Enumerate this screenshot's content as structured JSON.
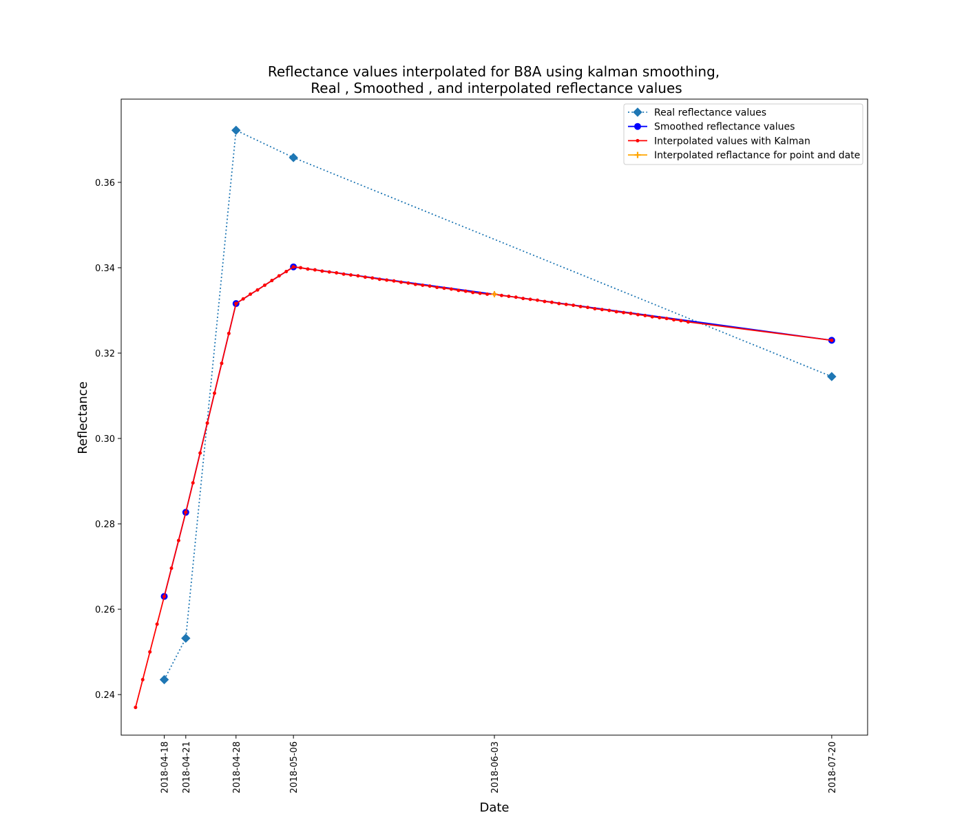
{
  "chart_data": {
    "type": "line",
    "title_lines": [
      "Reflectance values interpolated for B8A using kalman smoothing,",
      "Real  , Smoothed , and interpolated  reflectance values"
    ],
    "xlabel": "Date",
    "ylabel": "Reflectance",
    "x_type": "date",
    "xlim": [
      "2018-04-12",
      "2018-07-25"
    ],
    "ylim": [
      0.2305,
      0.3795
    ],
    "x_ticks": [
      "2018-04-18",
      "2018-04-21",
      "2018-04-28",
      "2018-05-06",
      "2018-06-03",
      "2018-07-20"
    ],
    "y_ticks": [
      0.24,
      0.26,
      0.28,
      0.3,
      0.32,
      0.34,
      0.36
    ],
    "y_tick_labels": [
      "0.24",
      "0.26",
      "0.28",
      "0.30",
      "0.32",
      "0.34",
      "0.36"
    ],
    "grid": false,
    "legend_position": "top-right",
    "series": [
      {
        "name": "Real reflectance values",
        "color": "#1f77b4",
        "line_style": "dotted",
        "marker": "diamond",
        "x": [
          "2018-04-18",
          "2018-04-21",
          "2018-04-28",
          "2018-05-06",
          "2018-07-20"
        ],
        "y": [
          0.2435,
          0.2532,
          0.3722,
          0.3658,
          0.3145
        ]
      },
      {
        "name": "Smoothed reflectance values",
        "color": "#0000ff",
        "line_style": "solid",
        "marker": "circle",
        "x": [
          "2018-04-18",
          "2018-04-21",
          "2018-04-28",
          "2018-05-06",
          "2018-07-20"
        ],
        "y": [
          0.263,
          0.2827,
          0.3316,
          0.3402,
          0.323
        ]
      },
      {
        "name": "Interpolated values with Kalman",
        "color": "#ff0000",
        "line_style": "solid",
        "marker": "dot",
        "x": [
          "2018-04-14",
          "2018-04-15",
          "2018-04-16",
          "2018-04-17",
          "2018-04-18",
          "2018-04-19",
          "2018-04-20",
          "2018-04-21",
          "2018-04-22",
          "2018-04-23",
          "2018-04-24",
          "2018-04-25",
          "2018-04-26",
          "2018-04-27",
          "2018-04-28",
          "2018-04-29",
          "2018-04-30",
          "2018-05-01",
          "2018-05-02",
          "2018-05-03",
          "2018-05-04",
          "2018-05-05",
          "2018-05-06",
          "2018-05-07",
          "2018-05-08",
          "2018-05-09",
          "2018-05-10",
          "2018-05-11",
          "2018-05-12",
          "2018-05-13",
          "2018-05-14",
          "2018-05-15",
          "2018-05-16",
          "2018-05-17",
          "2018-05-18",
          "2018-05-19",
          "2018-05-20",
          "2018-05-21",
          "2018-05-22",
          "2018-05-23",
          "2018-05-24",
          "2018-05-25",
          "2018-05-26",
          "2018-05-27",
          "2018-05-28",
          "2018-05-29",
          "2018-05-30",
          "2018-05-31",
          "2018-06-01",
          "2018-06-02",
          "2018-06-03",
          "2018-06-04",
          "2018-06-05",
          "2018-06-06",
          "2018-06-07",
          "2018-06-08",
          "2018-06-09",
          "2018-06-10",
          "2018-06-11",
          "2018-06-12",
          "2018-06-13",
          "2018-06-14",
          "2018-06-15",
          "2018-06-16",
          "2018-06-17",
          "2018-06-18",
          "2018-06-19",
          "2018-06-20",
          "2018-06-21",
          "2018-06-22",
          "2018-06-23",
          "2018-06-24",
          "2018-06-25",
          "2018-06-26",
          "2018-06-27",
          "2018-06-28",
          "2018-06-29",
          "2018-06-30",
          "2018-07-20"
        ],
        "y": [
          0.237,
          0.2435,
          0.25,
          0.2565,
          0.263,
          0.2696,
          0.2761,
          0.2827,
          0.2896,
          0.2966,
          0.3036,
          0.3106,
          0.3176,
          0.3246,
          0.3316,
          0.3327,
          0.3338,
          0.3348,
          0.3359,
          0.337,
          0.3381,
          0.3391,
          0.3402,
          0.34,
          0.3397,
          0.3395,
          0.3392,
          0.339,
          0.3388,
          0.3385,
          0.3383,
          0.3381,
          0.3378,
          0.3376,
          0.3373,
          0.3371,
          0.3369,
          0.3366,
          0.3364,
          0.3361,
          0.3359,
          0.3357,
          0.3354,
          0.3352,
          0.335,
          0.3347,
          0.3345,
          0.3342,
          0.334,
          0.3338,
          0.3338,
          0.3335,
          0.3333,
          0.3331,
          0.3328,
          0.3326,
          0.3324,
          0.3321,
          0.3319,
          0.3316,
          0.3314,
          0.3312,
          0.3309,
          0.3307,
          0.3304,
          0.3302,
          0.33,
          0.3297,
          0.3295,
          0.3293,
          0.329,
          0.3288,
          0.3285,
          0.3283,
          0.3281,
          0.3278,
          0.3276,
          0.3273,
          0.323
        ]
      },
      {
        "name": "Interpolated reflactance for point and date",
        "color": "#ffa500",
        "line_style": "solid",
        "marker": "plus",
        "x": [
          "2018-06-03"
        ],
        "y": [
          0.3338
        ]
      }
    ]
  }
}
